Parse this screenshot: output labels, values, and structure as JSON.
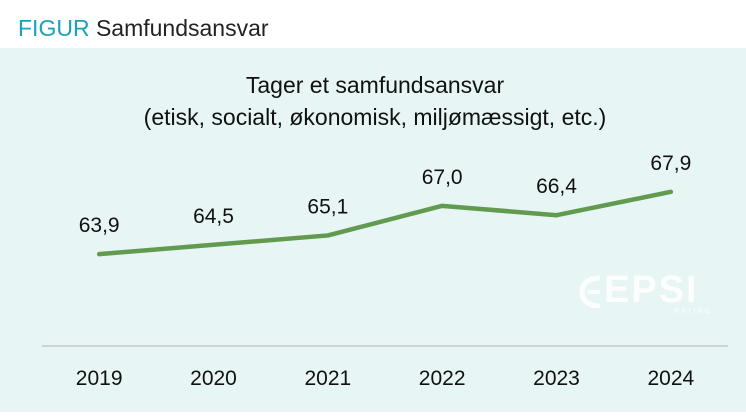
{
  "figure": {
    "prefix": "FIGUR",
    "title": "Samfundsansvar"
  },
  "logo": {
    "text": "EPSI",
    "subtext": "RATING"
  },
  "colors": {
    "accent": "#1aa3b8",
    "panel": "#e8f5f5",
    "line": "#629b50",
    "axis": "#c5c9c9"
  },
  "chart_data": {
    "type": "line",
    "title": "Tager et samfundsansvar",
    "subtitle": "(etisk, socialt, økonomisk, miljømæssigt, etc.)",
    "categories": [
      "2019",
      "2020",
      "2021",
      "2022",
      "2023",
      "2024"
    ],
    "values": [
      63.9,
      64.5,
      65.1,
      67.0,
      66.4,
      67.9
    ],
    "data_labels": [
      "63,9",
      "64,5",
      "65,1",
      "67,0",
      "66,4",
      "67,9"
    ],
    "xlabel": "",
    "ylabel": "",
    "ylim": [
      58,
      72
    ],
    "grid": false,
    "legend": "none"
  }
}
